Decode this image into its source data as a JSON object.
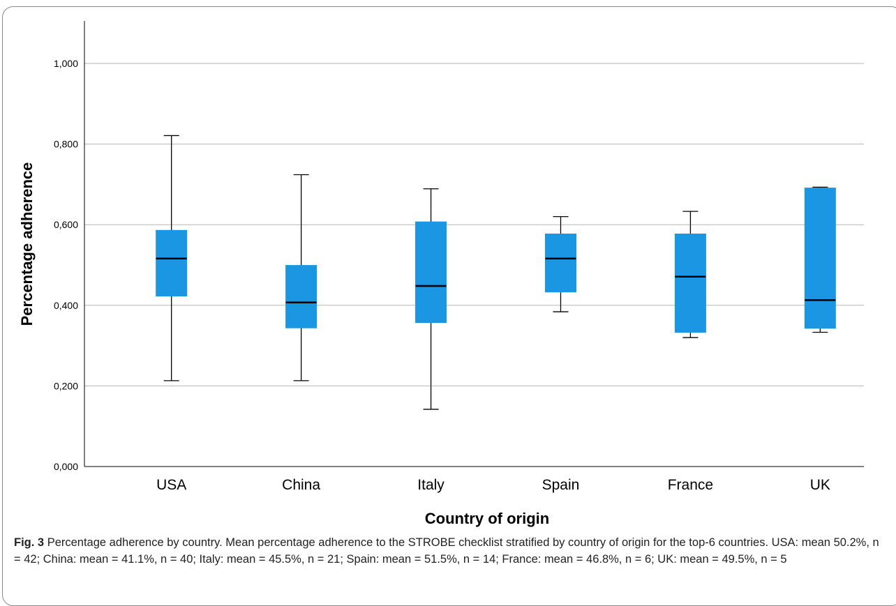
{
  "chart_data": {
    "type": "boxplot",
    "xlabel": "Country of origin",
    "ylabel": "Percentage adherence",
    "ylim": [
      0,
      1.1
    ],
    "yticks": [
      0,
      0.2,
      0.4,
      0.6,
      0.8,
      1.0
    ],
    "ytick_labels": [
      "0,000",
      "0,200",
      "0,400",
      "0,600",
      "0,800",
      "1,000"
    ],
    "grid": true,
    "box_color": "#1b96e3",
    "categories": [
      "USA",
      "China",
      "Italy",
      "Spain",
      "France",
      "UK"
    ],
    "boxes": [
      {
        "category": "USA",
        "min": 0.213,
        "q1": 0.423,
        "median": 0.516,
        "q3": 0.586,
        "max": 0.821
      },
      {
        "category": "China",
        "min": 0.213,
        "q1": 0.344,
        "median": 0.407,
        "q3": 0.499,
        "max": 0.724
      },
      {
        "category": "Italy",
        "min": 0.142,
        "q1": 0.357,
        "median": 0.448,
        "q3": 0.607,
        "max": 0.689
      },
      {
        "category": "Spain",
        "min": 0.384,
        "q1": 0.433,
        "median": 0.516,
        "q3": 0.577,
        "max": 0.62
      },
      {
        "category": "France",
        "min": 0.32,
        "q1": 0.333,
        "median": 0.471,
        "q3": 0.577,
        "max": 0.633
      },
      {
        "category": "UK",
        "min": 0.333,
        "q1": 0.343,
        "median": 0.413,
        "q3": 0.691,
        "max": 0.693
      }
    ]
  },
  "caption": {
    "label": "Fig. 3",
    "text": "Percentage adherence by country. Mean percentage adherence to the STROBE checklist stratified by country of origin for the top-6 countries. USA: mean 50.2%, n = 42; China: mean = 41.1%, n = 40; Italy: mean = 45.5%, n = 21; Spain: mean = 51.5%, n = 14; France: mean = 46.8%, n = 6; UK: mean = 49.5%, n = 5"
  }
}
